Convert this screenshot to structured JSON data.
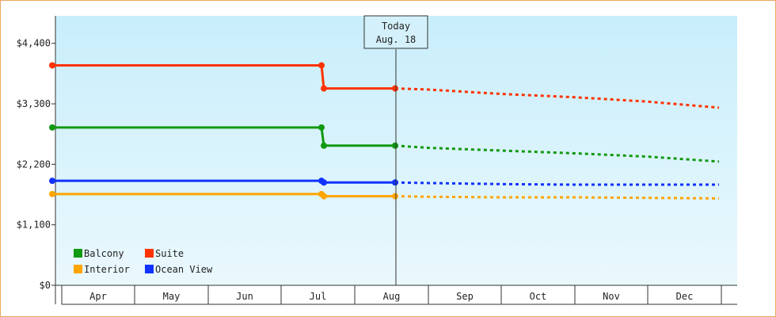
{
  "chart_data": {
    "type": "line",
    "y_ticks": [
      "$0",
      "$1,100",
      "$2,200",
      "$3,300",
      "$4,400"
    ],
    "ylim": [
      0,
      4900
    ],
    "months": [
      "Apr",
      "May",
      "Jun",
      "Jul",
      "Aug",
      "Sep",
      "Oct",
      "Nov",
      "Dec"
    ],
    "today": {
      "line1": "Today",
      "line2": "Aug. 18"
    },
    "legend_position": "bottom-left",
    "grid": false,
    "background_gradient": [
      "#c8eefb",
      "#eaf8fd"
    ],
    "series": [
      {
        "name": "Suite",
        "color": "#ff3300",
        "actual": [
          [
            "Mar 28",
            4000
          ],
          [
            "Jul 18",
            4000
          ],
          [
            "Jul 19",
            3580
          ],
          [
            "Aug 18",
            3580
          ]
        ],
        "forecast": [
          [
            "Aug 18",
            3580
          ],
          [
            "Sep 1",
            3560
          ],
          [
            "Oct 1",
            3480
          ],
          [
            "Nov 1",
            3420
          ],
          [
            "Dec 1",
            3340
          ],
          [
            "Dec 31",
            3230
          ]
        ]
      },
      {
        "name": "Balcony",
        "color": "#119911",
        "actual": [
          [
            "Mar 28",
            2870
          ],
          [
            "Jul 18",
            2870
          ],
          [
            "Jul 19",
            2540
          ],
          [
            "Aug 18",
            2540
          ]
        ],
        "forecast": [
          [
            "Aug 18",
            2540
          ],
          [
            "Sep 1",
            2500
          ],
          [
            "Oct 1",
            2450
          ],
          [
            "Nov 1",
            2400
          ],
          [
            "Dec 1",
            2340
          ],
          [
            "Dec 31",
            2250
          ]
        ]
      },
      {
        "name": "Ocean View",
        "color": "#1133ff",
        "actual": [
          [
            "Mar 28",
            1900
          ],
          [
            "Jul 18",
            1900
          ],
          [
            "Jul 19",
            1870
          ],
          [
            "Aug 18",
            1870
          ]
        ],
        "forecast": [
          [
            "Aug 18",
            1870
          ],
          [
            "Sep 1",
            1860
          ],
          [
            "Oct 1",
            1840
          ],
          [
            "Nov 1",
            1830
          ],
          [
            "Dec 1",
            1830
          ],
          [
            "Dec 31",
            1830
          ]
        ]
      },
      {
        "name": "Interior",
        "color": "#ffa500",
        "actual": [
          [
            "Mar 28",
            1660
          ],
          [
            "Jul 18",
            1660
          ],
          [
            "Jul 19",
            1620
          ],
          [
            "Aug 18",
            1620
          ]
        ],
        "forecast": [
          [
            "Aug 18",
            1620
          ],
          [
            "Sep 1",
            1610
          ],
          [
            "Oct 1",
            1600
          ],
          [
            "Nov 1",
            1600
          ],
          [
            "Dec 1",
            1590
          ],
          [
            "Dec 31",
            1580
          ]
        ]
      }
    ]
  },
  "legend": [
    {
      "label": "Balcony",
      "color": "#119911"
    },
    {
      "label": "Suite",
      "color": "#ff3300"
    },
    {
      "label": "Interior",
      "color": "#ffa500"
    },
    {
      "label": "Ocean View",
      "color": "#1133ff"
    }
  ]
}
